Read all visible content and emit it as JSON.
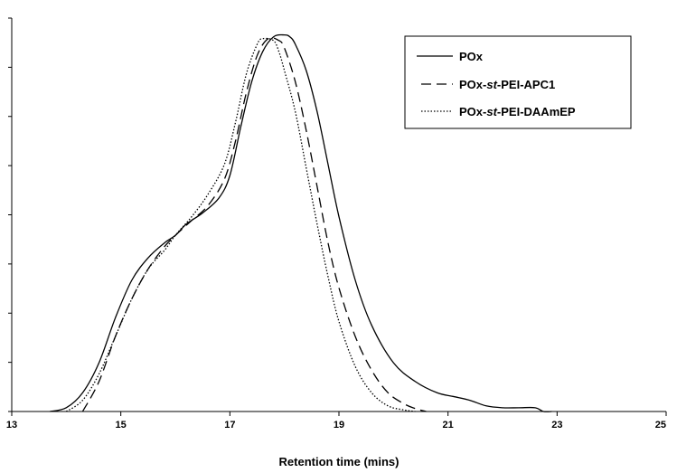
{
  "chart_data": {
    "type": "line",
    "title": "",
    "xlabel": "Retention time (mins)",
    "ylabel": "",
    "xlim": [
      13,
      25
    ],
    "ylim": [
      0,
      1.05
    ],
    "x_ticks": [
      {
        "value": 13,
        "label": "13"
      },
      {
        "value": 15,
        "label": "15"
      },
      {
        "value": 17,
        "label": "17"
      },
      {
        "value": 19,
        "label": "19"
      },
      {
        "value": 21,
        "label": "21"
      },
      {
        "value": 23,
        "label": "23"
      },
      {
        "value": 25,
        "label": "25"
      }
    ],
    "grid": false,
    "legend_position": "top-right",
    "series": [
      {
        "name": "POx",
        "parts": [
          {
            "text": "POx",
            "italic": false
          }
        ],
        "style": "solid",
        "color": "#000000",
        "x": [
          13.7,
          14.0,
          14.3,
          14.6,
          14.9,
          15.2,
          15.5,
          15.8,
          16.0,
          16.2,
          16.5,
          16.8,
          17.0,
          17.2,
          17.4,
          17.6,
          17.8,
          18.0,
          18.1,
          18.2,
          18.4,
          18.6,
          18.8,
          19.0,
          19.3,
          19.6,
          20.0,
          20.4,
          20.8,
          21.1,
          21.4,
          21.7,
          22.0,
          22.3,
          22.6,
          22.75,
          22.9
        ],
        "y": [
          0.0,
          0.01,
          0.05,
          0.13,
          0.25,
          0.35,
          0.41,
          0.45,
          0.47,
          0.5,
          0.53,
          0.57,
          0.63,
          0.76,
          0.88,
          0.96,
          1.0,
          1.005,
          1.0,
          0.98,
          0.91,
          0.8,
          0.66,
          0.52,
          0.35,
          0.23,
          0.13,
          0.08,
          0.05,
          0.04,
          0.03,
          0.015,
          0.01,
          0.01,
          0.01,
          0.0,
          0.0
        ]
      },
      {
        "name": "POx-st-PEI-APC1",
        "parts": [
          {
            "text": "POx-",
            "italic": false
          },
          {
            "text": "st",
            "italic": true
          },
          {
            "text": "-PEI-APC1",
            "italic": false
          }
        ],
        "style": "dashed",
        "color": "#000000",
        "x": [
          14.3,
          14.6,
          14.9,
          15.2,
          15.5,
          15.8,
          16.0,
          16.3,
          16.6,
          16.9,
          17.1,
          17.3,
          17.5,
          17.7,
          17.9,
          18.0,
          18.2,
          18.4,
          18.6,
          18.8,
          19.0,
          19.3,
          19.6,
          19.9,
          20.2,
          20.4,
          20.6
        ],
        "y": [
          0.0,
          0.08,
          0.2,
          0.3,
          0.38,
          0.44,
          0.47,
          0.51,
          0.55,
          0.62,
          0.72,
          0.85,
          0.95,
          0.995,
          0.99,
          0.97,
          0.88,
          0.75,
          0.6,
          0.45,
          0.33,
          0.2,
          0.11,
          0.05,
          0.02,
          0.008,
          0.0
        ]
      },
      {
        "name": "POx-st-PEI-DAAmEP",
        "parts": [
          {
            "text": "POx-",
            "italic": false
          },
          {
            "text": "st",
            "italic": true
          },
          {
            "text": "-PEI-",
            "italic": false
          },
          {
            "text": "D",
            "italic": false
          },
          {
            "text": "AAmEP",
            "italic": false
          }
        ],
        "style": "dotted",
        "color": "#000000",
        "x": [
          14.0,
          14.3,
          14.6,
          14.9,
          15.2,
          15.5,
          15.8,
          16.0,
          16.3,
          16.6,
          16.9,
          17.1,
          17.3,
          17.5,
          17.6,
          17.8,
          17.9,
          18.0,
          18.2,
          18.4,
          18.6,
          18.8,
          19.0,
          19.3,
          19.6,
          19.9,
          20.2,
          20.4
        ],
        "y": [
          0.0,
          0.03,
          0.1,
          0.2,
          0.3,
          0.38,
          0.43,
          0.47,
          0.52,
          0.58,
          0.66,
          0.77,
          0.9,
          0.98,
          0.995,
          0.99,
          0.96,
          0.91,
          0.8,
          0.65,
          0.5,
          0.36,
          0.24,
          0.12,
          0.05,
          0.015,
          0.004,
          0.0
        ]
      }
    ]
  }
}
